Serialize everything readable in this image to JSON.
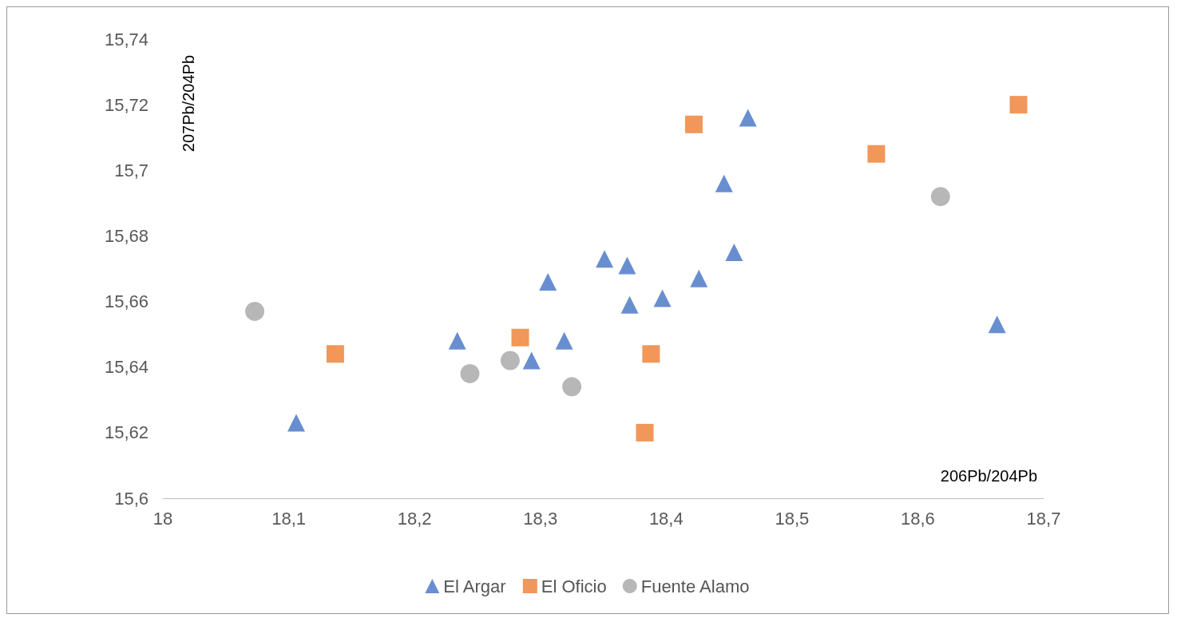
{
  "chart_data": {
    "type": "scatter",
    "xlabel": "206Pb/204Pb",
    "ylabel": "207Pb/204Pb",
    "xlim": [
      18,
      18.7
    ],
    "ylim": [
      15.6,
      15.74
    ],
    "xticks": [
      18,
      {
        "value": 18.1,
        "label": "18,1"
      },
      {
        "value": 18.2,
        "label": "18,2"
      },
      {
        "value": 18.3,
        "label": "18,3"
      },
      {
        "value": 18.4,
        "label": "18,4"
      },
      {
        "value": 18.5,
        "label": "18,5"
      },
      {
        "value": 18.6,
        "label": "18,6"
      },
      {
        "value": 18.7,
        "label": "18,7"
      }
    ],
    "yticks": [
      {
        "value": 15.6,
        "label": "15,6"
      },
      {
        "value": 15.62,
        "label": "15,62"
      },
      {
        "value": 15.64,
        "label": "15,64"
      },
      {
        "value": 15.66,
        "label": "15,66"
      },
      {
        "value": 15.68,
        "label": "15,68"
      },
      {
        "value": 15.7,
        "label": "15,7"
      },
      {
        "value": 15.72,
        "label": "15,72"
      },
      {
        "value": 15.74,
        "label": "15,74"
      }
    ],
    "grid": false,
    "legend": "bottom",
    "series": [
      {
        "name": "El Argar",
        "color": "#4472c4",
        "marker": "triangle",
        "x": [
          18.106,
          18.234,
          18.293,
          18.306,
          18.319,
          18.351,
          18.369,
          18.371,
          18.397,
          18.426,
          18.446,
          18.454,
          18.465,
          18.663
        ],
        "values": [
          15.623,
          15.648,
          15.642,
          15.666,
          15.648,
          15.673,
          15.671,
          15.659,
          15.661,
          15.667,
          15.696,
          15.675,
          15.716,
          15.653
        ]
      },
      {
        "name": "El Oficio",
        "color": "#ed7d31",
        "marker": "square",
        "x": [
          18.137,
          18.284,
          18.388,
          18.383,
          18.422,
          18.567,
          18.68
        ],
        "values": [
          15.644,
          15.649,
          15.644,
          15.62,
          15.714,
          15.705,
          15.72
        ]
      },
      {
        "name": "Fuente Alamo",
        "color": "#a5a5a5",
        "marker": "circle",
        "x": [
          18.073,
          18.244,
          18.276,
          18.325,
          18.618
        ],
        "values": [
          15.657,
          15.638,
          15.642,
          15.634,
          15.692
        ]
      }
    ]
  }
}
